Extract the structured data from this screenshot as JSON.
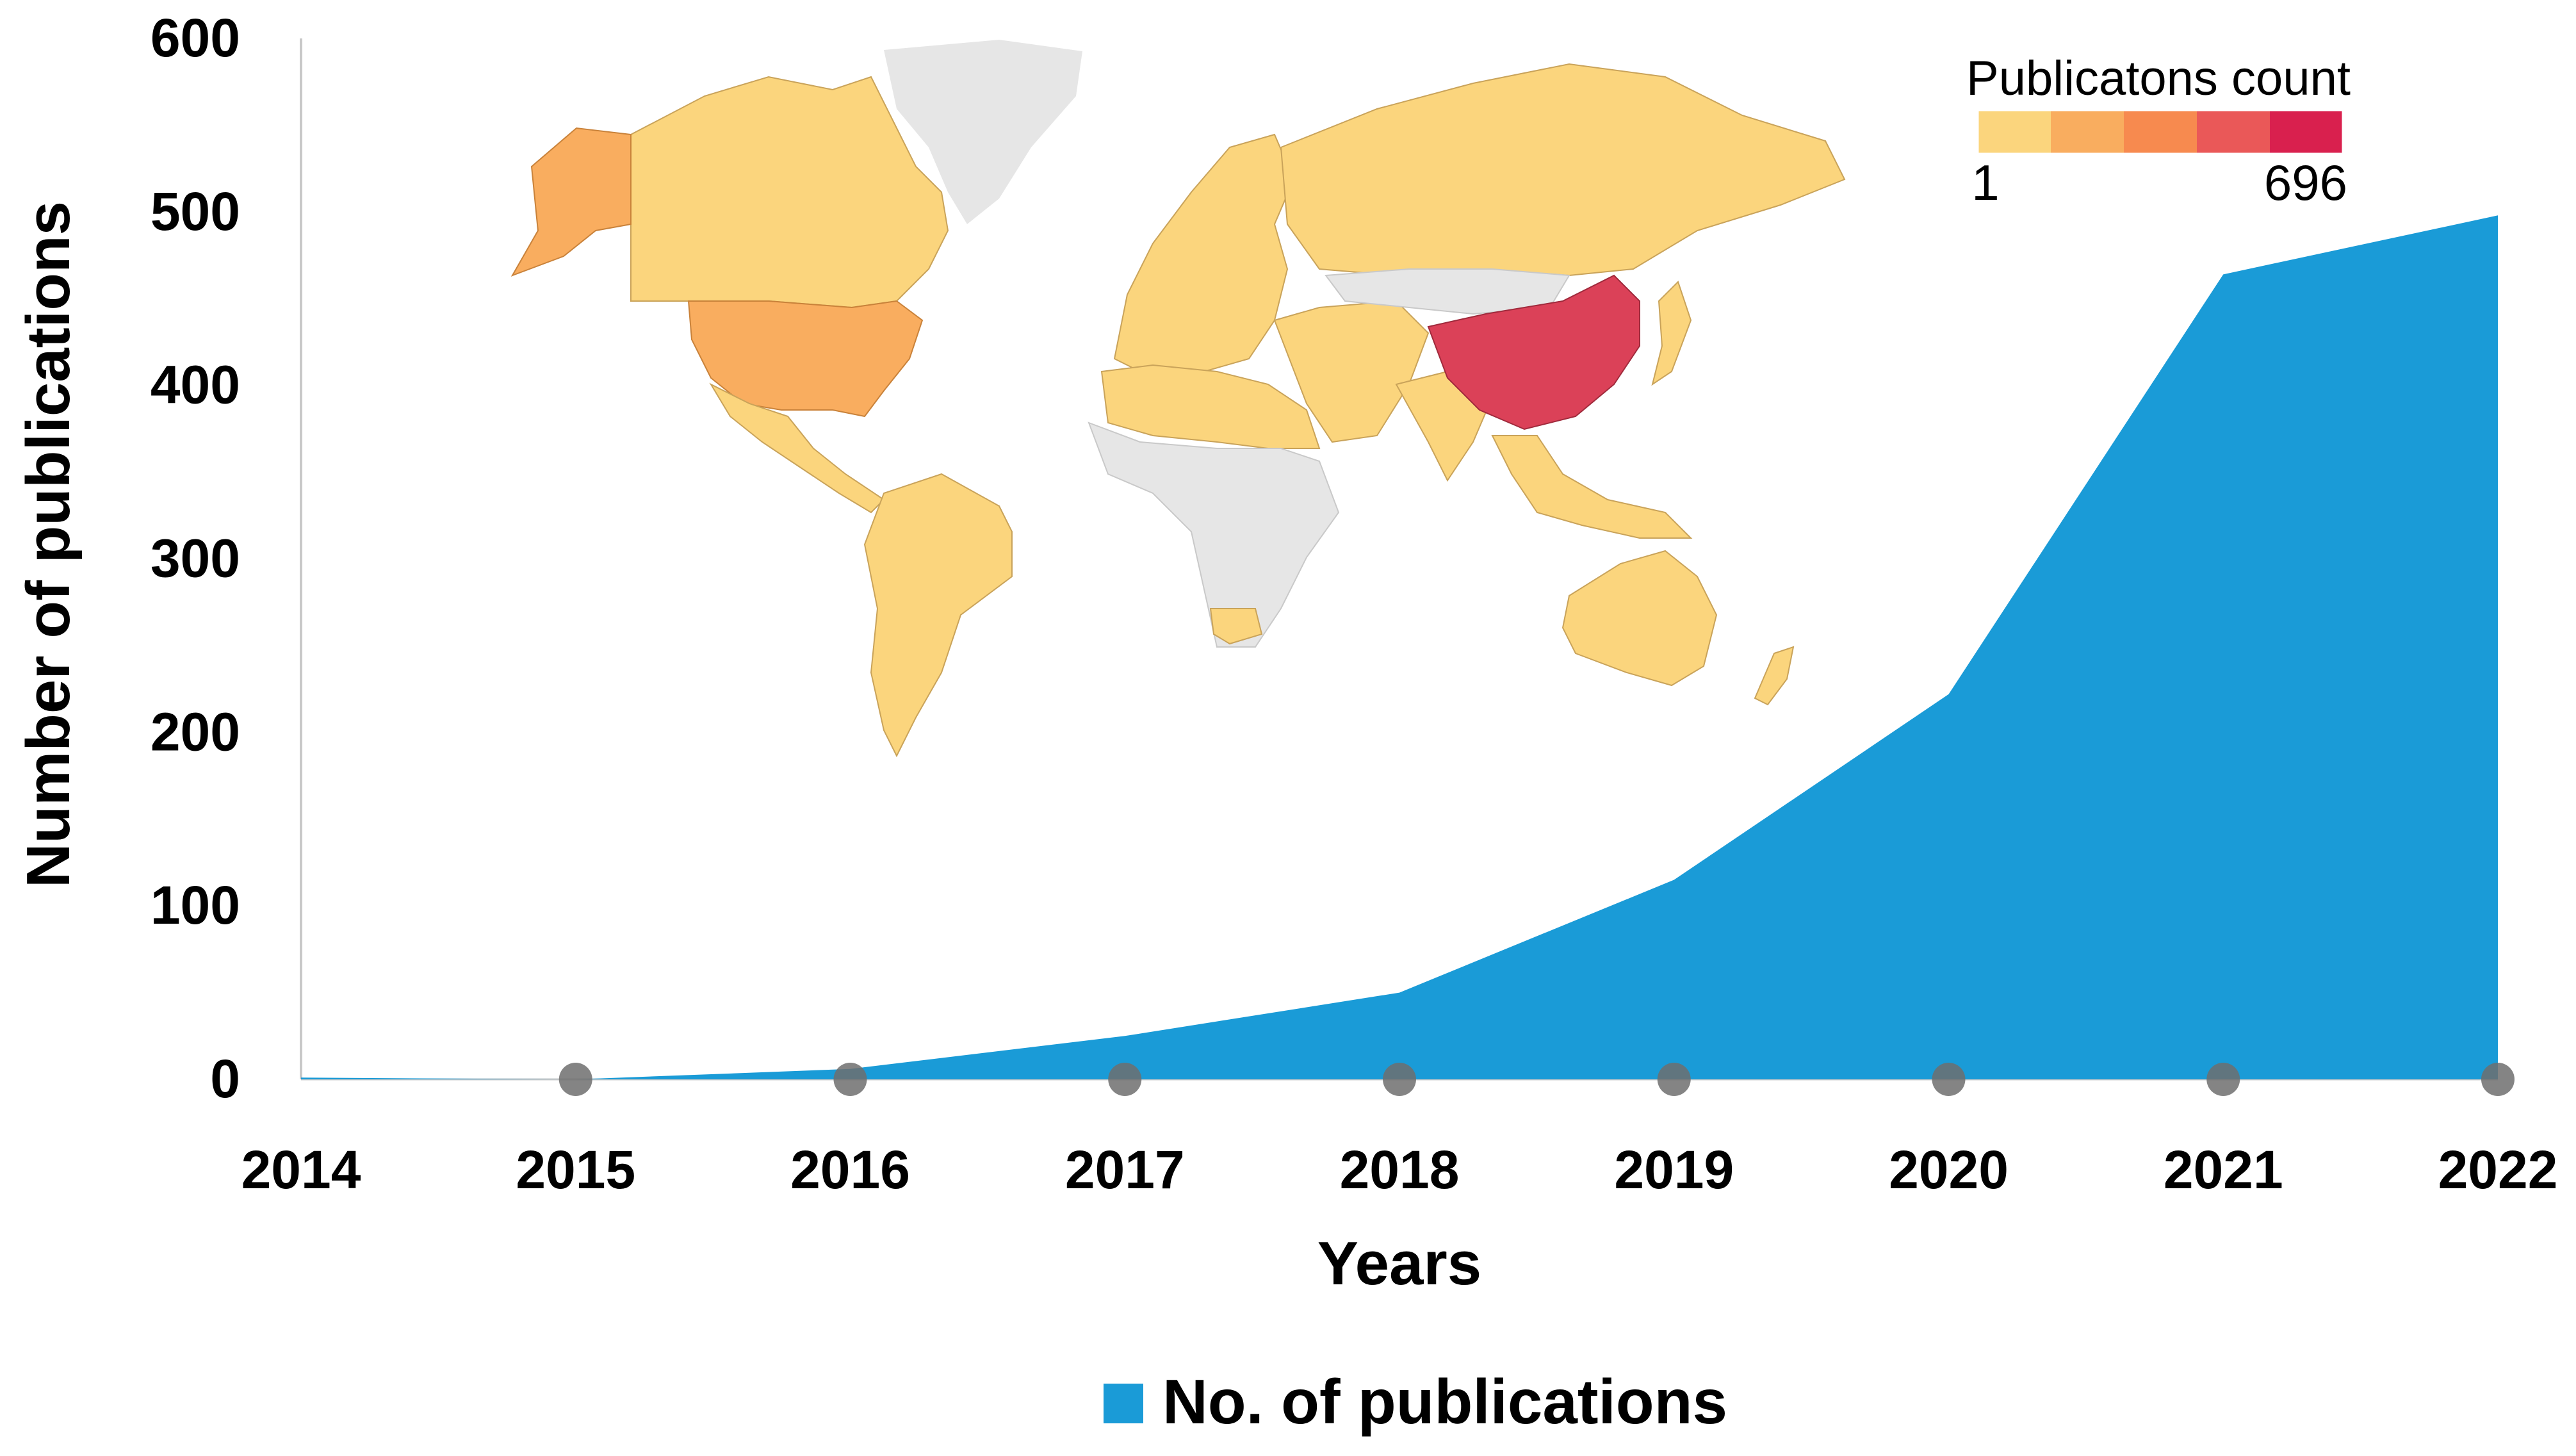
{
  "chart_data": {
    "type": "area",
    "x": [
      2014,
      2015,
      2016,
      2017,
      2018,
      2019,
      2020,
      2021,
      2022
    ],
    "series": [
      {
        "name": "No. of publications",
        "values": [
          1,
          0,
          6,
          25,
          50,
          115,
          222,
          464,
          498
        ],
        "color": "#1a9bd7"
      }
    ],
    "xlabel": "Years",
    "ylabel": "Number of publications",
    "ylim": [
      0,
      600
    ],
    "yticks": [
      "0",
      "100",
      "200",
      "300",
      "400",
      "500",
      "600"
    ],
    "xticks": [
      "2014",
      "2015",
      "2016",
      "2017",
      "2018",
      "2019",
      "2020",
      "2021",
      "2022"
    ],
    "grid": false,
    "legend_position": "bottom-center",
    "inset_map": {
      "type": "choropleth",
      "colorbar_title": "Publicatons count",
      "colorbar_min": "1",
      "colorbar_max": "696",
      "colorbar_colors": [
        "#fbd57d",
        "#f9ad5f",
        "#f78a4f",
        "#ea5858",
        "#d9204e"
      ],
      "no_data_color": "#e6e6e6",
      "highlighted": [
        {
          "region": "China",
          "color": "#db4158"
        },
        {
          "region": "United States",
          "color": "#f9ad5f"
        },
        {
          "region": "Alaska",
          "color": "#f9ad5f"
        }
      ]
    }
  }
}
